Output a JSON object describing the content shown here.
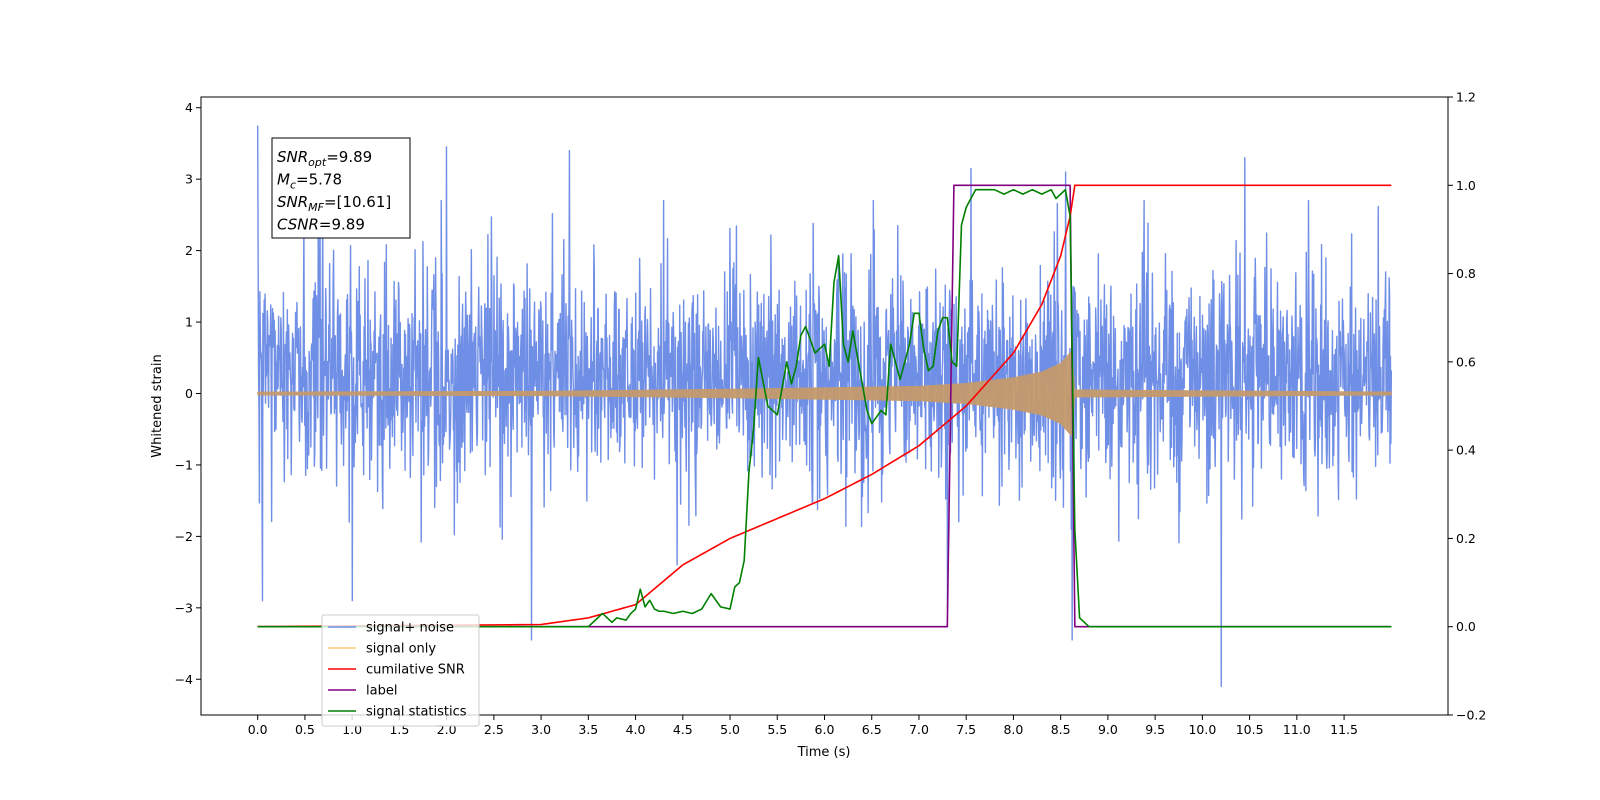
{
  "chart_data": {
    "type": "line",
    "title": "",
    "xlabel": "Time (s)",
    "ylabel": "Whitened strain",
    "xlim": [
      -0.6,
      12.6
    ],
    "ylim": [
      -4.5,
      4.15
    ],
    "y2lim": [
      -0.2,
      1.2
    ],
    "grid": false,
    "legend_position": "lower-left",
    "x_ticks": [
      "0.0",
      "0.5",
      "1.0",
      "1.5",
      "2.0",
      "2.5",
      "3.0",
      "3.5",
      "4.0",
      "4.5",
      "5.0",
      "5.5",
      "6.0",
      "6.5",
      "7.0",
      "7.5",
      "8.0",
      "8.5",
      "9.0",
      "9.5",
      "10.0",
      "10.5",
      "11.0",
      "11.5"
    ],
    "y_ticks": [
      "4",
      "3",
      "2",
      "1",
      "0",
      "−1",
      "−2",
      "−3",
      "−4"
    ],
    "y2_ticks": [
      "1.2",
      "1.0",
      "0.8",
      "0.6",
      "0.4",
      "0.2",
      "0.0",
      "−0.2"
    ],
    "annotation": {
      "lines": [
        {
          "sym": "SNR",
          "sub": "opt",
          "value": "=9.89"
        },
        {
          "sym": "M",
          "sub": "c",
          "value": "=5.78"
        },
        {
          "sym": "SNR",
          "sub": "MF",
          "value": "=[10.61]"
        },
        {
          "sym": "CSNR",
          "sub": "",
          "value": "=9.89"
        }
      ]
    },
    "colors": {
      "signal_noise": "#6f8ee6",
      "signal_only": "#c49a6c",
      "signal_only_legend": "#ffc86e",
      "cumulative_snr": "#ff0000",
      "label": "#800080",
      "signal_statistics": "#008000"
    },
    "series": [
      {
        "name": "signal+ noise",
        "axis": "left",
        "noise_envelope": {
          "x_range": [
            0.0,
            12.0
          ],
          "typical_range": [
            -1.6,
            2.3
          ],
          "peak_range": [
            -4.1,
            3.75
          ]
        },
        "notable_points": [
          [
            0.0,
            3.75
          ],
          [
            0.05,
            -2.9
          ],
          [
            1.0,
            -2.9
          ],
          [
            2.0,
            3.45
          ],
          [
            2.9,
            -3.45
          ],
          [
            3.3,
            3.4
          ],
          [
            7.3,
            -3.0
          ],
          [
            7.55,
            3.15
          ],
          [
            8.55,
            3.1
          ],
          [
            8.62,
            -3.45
          ],
          [
            10.2,
            -4.1
          ],
          [
            10.45,
            3.3
          ]
        ]
      },
      {
        "name": "signal only",
        "axis": "left",
        "chirp": {
          "start": 0.0,
          "merger": 8.65,
          "end": 12.0
        },
        "envelope": [
          [
            0.0,
            0.02
          ],
          [
            3.0,
            0.03
          ],
          [
            5.0,
            0.06
          ],
          [
            6.0,
            0.08
          ],
          [
            7.0,
            0.1
          ],
          [
            7.5,
            0.14
          ],
          [
            8.0,
            0.22
          ],
          [
            8.3,
            0.3
          ],
          [
            8.5,
            0.42
          ],
          [
            8.62,
            0.6
          ],
          [
            8.65,
            0.05
          ],
          [
            12.0,
            0.02
          ]
        ]
      },
      {
        "name": "cumilative SNR",
        "axis": "right",
        "x": [
          0.0,
          3.0,
          3.5,
          4.0,
          4.5,
          5.0,
          5.5,
          6.0,
          6.5,
          7.0,
          7.5,
          8.0,
          8.3,
          8.5,
          8.6,
          8.65,
          12.0
        ],
        "values": [
          0.0,
          0.005,
          0.02,
          0.05,
          0.14,
          0.2,
          0.245,
          0.29,
          0.345,
          0.41,
          0.5,
          0.62,
          0.73,
          0.84,
          0.93,
          1.0,
          1.0
        ]
      },
      {
        "name": "label",
        "axis": "right",
        "x": [
          0.0,
          7.3,
          7.37,
          8.6,
          8.65,
          12.0
        ],
        "values": [
          0.0,
          0.0,
          1.0,
          1.0,
          0.0,
          0.0
        ]
      },
      {
        "name": "signal statistics",
        "axis": "right",
        "x": [
          0.0,
          3.5,
          3.6,
          3.65,
          3.75,
          3.8,
          3.9,
          3.95,
          4.0,
          4.05,
          4.1,
          4.15,
          4.2,
          4.25,
          4.3,
          4.4,
          4.5,
          4.6,
          4.7,
          4.8,
          4.85,
          4.9,
          5.0,
          5.05,
          5.1,
          5.15,
          5.2,
          5.25,
          5.3,
          5.4,
          5.45,
          5.5,
          5.6,
          5.65,
          5.7,
          5.75,
          5.8,
          5.9,
          6.0,
          6.05,
          6.1,
          6.15,
          6.2,
          6.25,
          6.3,
          6.4,
          6.45,
          6.5,
          6.6,
          6.65,
          6.7,
          6.75,
          6.8,
          6.9,
          6.95,
          7.0,
          7.05,
          7.1,
          7.15,
          7.2,
          7.25,
          7.3,
          7.35,
          7.4,
          7.45,
          7.5,
          7.55,
          7.6,
          7.7,
          7.8,
          7.9,
          8.0,
          8.1,
          8.2,
          8.3,
          8.4,
          8.45,
          8.5,
          8.55,
          8.6,
          8.65,
          8.7,
          8.8,
          8.9,
          9.0,
          12.0
        ],
        "values": [
          0.0,
          0.0,
          0.02,
          0.03,
          0.01,
          0.02,
          0.015,
          0.03,
          0.04,
          0.085,
          0.045,
          0.06,
          0.04,
          0.035,
          0.035,
          0.03,
          0.035,
          0.03,
          0.04,
          0.075,
          0.06,
          0.045,
          0.04,
          0.09,
          0.1,
          0.15,
          0.35,
          0.45,
          0.61,
          0.5,
          0.49,
          0.48,
          0.6,
          0.55,
          0.59,
          0.66,
          0.68,
          0.62,
          0.64,
          0.59,
          0.78,
          0.84,
          0.64,
          0.6,
          0.67,
          0.55,
          0.49,
          0.46,
          0.49,
          0.48,
          0.64,
          0.6,
          0.56,
          0.64,
          0.71,
          0.71,
          0.63,
          0.58,
          0.59,
          0.67,
          0.7,
          0.7,
          0.6,
          0.59,
          0.91,
          0.95,
          0.97,
          0.99,
          0.99,
          0.99,
          0.98,
          0.99,
          0.98,
          0.99,
          0.98,
          0.99,
          0.97,
          0.98,
          0.99,
          0.93,
          0.22,
          0.02,
          0.0,
          0.0,
          0.0,
          0.0
        ]
      }
    ]
  }
}
